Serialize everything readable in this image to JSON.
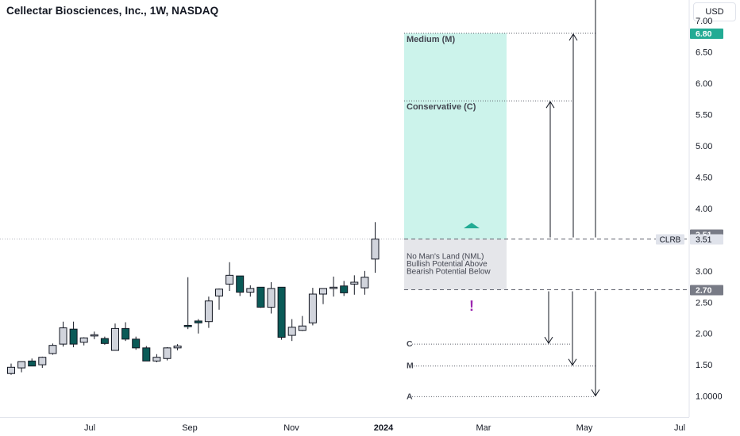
{
  "header": {
    "title": "Cellectar Biosciences, Inc., 1W, NASDAQ",
    "currency": "USD"
  },
  "chart_data": {
    "type": "candlestick",
    "ticker": "CLRB",
    "y_axis": {
      "ticks": [
        "1.0000",
        "1.50",
        "2.00",
        "2.50",
        "3.00",
        "3.50",
        "4.00",
        "4.50",
        "5.00",
        "5.50",
        "6.00",
        "6.50",
        "7.00"
      ]
    },
    "x_axis": {
      "ticks": [
        "Jul",
        "Sep",
        "Nov",
        "2024",
        "Mar",
        "May",
        "Jul"
      ]
    },
    "price_badges": [
      {
        "label": "6.80",
        "value": 6.8,
        "color": "#22ab94"
      },
      {
        "label": "3.51",
        "value": 3.51,
        "color": "#787b86"
      },
      {
        "label": "3.51",
        "value": 3.51,
        "color": "#787b86",
        "ticker": "CLRB"
      },
      {
        "label": "2.70",
        "value": 2.7,
        "color": "#787b86"
      }
    ],
    "candles": [
      {
        "o": 1.36,
        "h": 1.52,
        "l": 1.34,
        "c": 1.46
      },
      {
        "o": 1.45,
        "h": 1.55,
        "l": 1.38,
        "c": 1.55
      },
      {
        "o": 1.56,
        "h": 1.6,
        "l": 1.48,
        "c": 1.48
      },
      {
        "o": 1.5,
        "h": 1.63,
        "l": 1.45,
        "c": 1.62
      },
      {
        "o": 1.68,
        "h": 1.84,
        "l": 1.66,
        "c": 1.81
      },
      {
        "o": 1.83,
        "h": 2.19,
        "l": 1.79,
        "c": 2.09
      },
      {
        "o": 2.07,
        "h": 2.19,
        "l": 1.78,
        "c": 1.83
      },
      {
        "o": 1.86,
        "h": 1.94,
        "l": 1.81,
        "c": 1.93
      },
      {
        "o": 1.96,
        "h": 2.03,
        "l": 1.91,
        "c": 1.98
      },
      {
        "o": 1.92,
        "h": 1.95,
        "l": 1.82,
        "c": 1.84
      },
      {
        "o": 1.73,
        "h": 2.16,
        "l": 1.73,
        "c": 2.08
      },
      {
        "o": 2.08,
        "h": 2.18,
        "l": 1.88,
        "c": 1.91
      },
      {
        "o": 1.91,
        "h": 1.95,
        "l": 1.74,
        "c": 1.77
      },
      {
        "o": 1.77,
        "h": 1.8,
        "l": 1.56,
        "c": 1.56
      },
      {
        "o": 1.56,
        "h": 1.67,
        "l": 1.54,
        "c": 1.62
      },
      {
        "o": 1.6,
        "h": 1.78,
        "l": 1.57,
        "c": 1.77
      },
      {
        "o": 1.77,
        "h": 1.83,
        "l": 1.73,
        "c": 1.8
      },
      {
        "o": 2.13,
        "h": 2.9,
        "l": 2.07,
        "c": 2.11
      },
      {
        "o": 2.2,
        "h": 2.23,
        "l": 2.0,
        "c": 2.17
      },
      {
        "o": 2.19,
        "h": 2.59,
        "l": 2.09,
        "c": 2.52
      },
      {
        "o": 2.6,
        "h": 2.72,
        "l": 2.38,
        "c": 2.71
      },
      {
        "o": 2.79,
        "h": 3.14,
        "l": 2.68,
        "c": 2.93
      },
      {
        "o": 2.92,
        "h": 2.92,
        "l": 2.6,
        "c": 2.66
      },
      {
        "o": 2.66,
        "h": 2.77,
        "l": 2.59,
        "c": 2.72
      },
      {
        "o": 2.74,
        "h": 2.74,
        "l": 2.41,
        "c": 2.42
      },
      {
        "o": 2.42,
        "h": 2.82,
        "l": 2.32,
        "c": 2.72
      },
      {
        "o": 2.74,
        "h": 2.74,
        "l": 1.9,
        "c": 1.94
      },
      {
        "o": 1.97,
        "h": 2.23,
        "l": 1.88,
        "c": 2.1
      },
      {
        "o": 2.05,
        "h": 2.28,
        "l": 2.04,
        "c": 2.12
      },
      {
        "o": 2.17,
        "h": 2.73,
        "l": 2.13,
        "c": 2.63
      },
      {
        "o": 2.63,
        "h": 2.7,
        "l": 2.47,
        "c": 2.72
      },
      {
        "o": 2.72,
        "h": 2.91,
        "l": 2.59,
        "c": 2.74
      },
      {
        "o": 2.76,
        "h": 2.84,
        "l": 2.6,
        "c": 2.65
      },
      {
        "o": 2.79,
        "h": 2.93,
        "l": 2.62,
        "c": 2.82
      },
      {
        "o": 2.73,
        "h": 3.0,
        "l": 2.62,
        "c": 2.9
      },
      {
        "o": 3.19,
        "h": 3.78,
        "l": 2.97,
        "c": 3.51
      }
    ],
    "zones": {
      "upper_label": "Medium (M)",
      "lower_label": "Conservative (C)",
      "nml_lines": [
        "No Man's Land (NML)",
        "Bullish Potential Above",
        "Bearish Potential Below"
      ]
    },
    "levels": {
      "medium": 6.8,
      "conservative": 5.72,
      "nml_top": 3.51,
      "nml_bottom": 2.7,
      "c_down": 1.83,
      "m_down": 1.48,
      "a_down": 0.99
    },
    "downside_labels": [
      "C",
      "M",
      "A"
    ],
    "marker_symbol": "!"
  }
}
